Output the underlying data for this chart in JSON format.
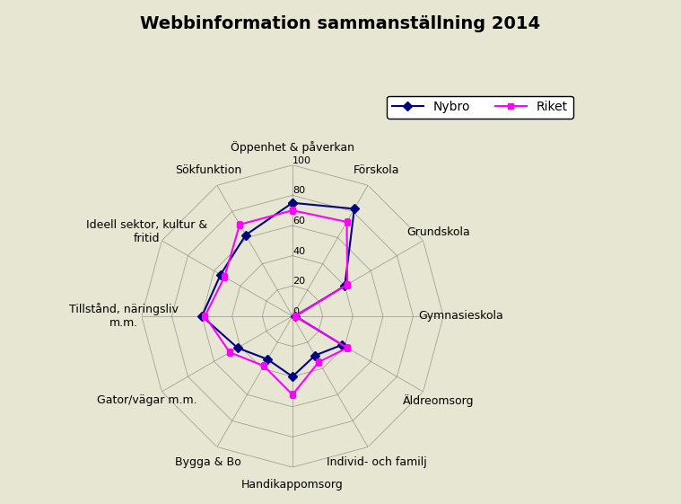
{
  "title": "Webbinformation sammanställning 2014",
  "background_color": "#e6e6d2",
  "categories": [
    "Öppenhet & påverkan",
    "Förskola",
    "Grundskola",
    "Gymnasieskola",
    "Äldreomsorg",
    "Individ- och familj",
    "Handikappomsorg",
    "Bygga & Bo",
    "Gator/vägar m.m.",
    "Tillstånd, näringsliv\nm.m.",
    "Ideell sektor, kultur &\nfritid",
    "Sökfunktion"
  ],
  "series": [
    {
      "name": "Nybro",
      "color": "#000080",
      "marker": "D",
      "markersize": 5,
      "values": [
        75,
        82,
        40,
        2,
        38,
        30,
        40,
        33,
        42,
        60,
        55,
        62
      ]
    },
    {
      "name": "Riket",
      "color": "#FF00FF",
      "marker": "s",
      "markersize": 5,
      "values": [
        70,
        72,
        42,
        2,
        42,
        35,
        52,
        38,
        48,
        58,
        52,
        70
      ]
    }
  ],
  "rmax": 100,
  "rticks": [
    0,
    20,
    40,
    60,
    80,
    100
  ],
  "tick_fontsize": 8,
  "label_fontsize": 9,
  "title_fontsize": 14,
  "legend_fontsize": 10
}
